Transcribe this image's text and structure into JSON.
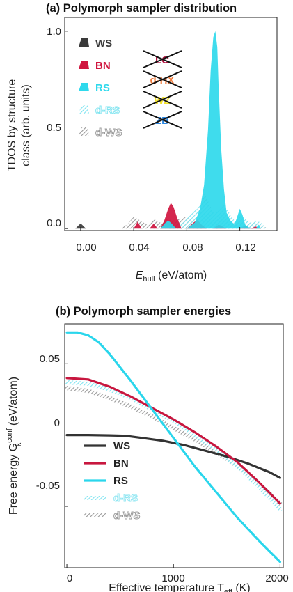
{
  "panel_a": {
    "title": "(a) Polymorph sampler distribution",
    "ylabel_line1": "TDOS by structure",
    "ylabel_line2": "class (arb. units)",
    "xlabel_main": "E",
    "xlabel_sub": "hull",
    "xlabel_unit": " (eV/atom)",
    "xticks": [
      "0.00",
      "0.04",
      "0.08",
      "0.12"
    ],
    "yticks": [
      "0.0",
      "0.5",
      "1.0"
    ],
    "legend": [
      {
        "label": "WS",
        "color": "#3a3a3a",
        "hatched": false
      },
      {
        "label": "BN",
        "color": "#d0153f",
        "hatched": false
      },
      {
        "label": "RS",
        "color": "#2fd9ec",
        "hatched": false
      },
      {
        "label": "d-RS",
        "color": "#7fe4f0",
        "hatched": true
      },
      {
        "label": "d-WS",
        "color": "#9a9a9a",
        "hatched": true
      }
    ],
    "crossed_labels": [
      {
        "label": "LC",
        "color": "#b1113f"
      },
      {
        "label": "d-HX",
        "color": "#f07a3a"
      },
      {
        "label": "WZ",
        "color": "#f2e22c"
      },
      {
        "label": "ZB",
        "color": "#2a86e0"
      }
    ]
  },
  "panel_b": {
    "title": "(b) Polymorph sampler energies",
    "ylabel_main": "Free energy G",
    "ylabel_sub": "k",
    "ylabel_sup": "conf",
    "ylabel_unit": " (eV/atom)",
    "xlabel_main": "Effective temperature T",
    "xlabel_sub": "eff",
    "xlabel_unit": " (K)",
    "xticks": [
      "0",
      "1000",
      "2000"
    ],
    "yticks": [
      "0.05",
      "0",
      "-0.05"
    ],
    "legend": [
      {
        "label": "WS",
        "color": "#333333",
        "hatched": false
      },
      {
        "label": "BN",
        "color": "#c8173f",
        "hatched": false
      },
      {
        "label": "RS",
        "color": "#2ad6ec",
        "hatched": false
      },
      {
        "label": "d-RS",
        "color": "#8fe6f2",
        "hatched": true
      },
      {
        "label": "d-WS",
        "color": "#9a9a9a",
        "hatched": true
      }
    ]
  },
  "chart_data": [
    {
      "type": "area",
      "title": "(a) Polymorph sampler distribution",
      "xlabel": "E_hull (eV/atom)",
      "ylabel": "TDOS by structure class (arb. units)",
      "xlim": [
        -0.012,
        0.148
      ],
      "ylim": [
        -0.01,
        1.07
      ],
      "series": [
        {
          "name": "WS",
          "color": "#3a3a3a",
          "x": [
            -0.004,
            -0.001,
            0.0,
            0.001,
            0.004
          ],
          "y": [
            0.0,
            0.02,
            0.025,
            0.02,
            0.0
          ]
        },
        {
          "name": "BN",
          "color": "#d0153f",
          "x": [
            0.04,
            0.043,
            0.046,
            0.052,
            0.055,
            0.058,
            0.06,
            0.063,
            0.066,
            0.068,
            0.07,
            0.073,
            0.076,
            0.08,
            0.085,
            0.088,
            0.091,
            0.095,
            0.1,
            0.104,
            0.11,
            0.115,
            0.12,
            0.124,
            0.128,
            0.132,
            0.136
          ],
          "y": [
            0.0,
            0.035,
            0.0,
            0.0,
            0.025,
            0.0,
            0.0,
            0.04,
            0.1,
            0.13,
            0.11,
            0.05,
            0.0,
            0.0,
            0.03,
            0.045,
            0.02,
            0.0,
            0.0,
            0.02,
            0.0,
            0.0,
            0.0,
            0.015,
            0.0,
            0.01,
            0.0
          ]
        },
        {
          "name": "RS",
          "color": "#2fd9ec",
          "x": [
            0.06,
            0.064,
            0.066,
            0.068,
            0.072,
            0.08,
            0.086,
            0.09,
            0.093,
            0.096,
            0.098,
            0.1,
            0.1015,
            0.103,
            0.104,
            0.106,
            0.108,
            0.11,
            0.113,
            0.116,
            0.118,
            0.12,
            0.122,
            0.124,
            0.128,
            0.132,
            0.134,
            0.136
          ],
          "y": [
            0.0,
            0.03,
            0.04,
            0.03,
            0.0,
            0.0,
            0.03,
            0.1,
            0.22,
            0.5,
            0.8,
            0.97,
            1.0,
            0.92,
            0.72,
            0.4,
            0.2,
            0.08,
            0.04,
            0.02,
            0.06,
            0.1,
            0.07,
            0.02,
            0.0,
            0.0,
            0.02,
            0.0
          ]
        },
        {
          "name": "d-RS",
          "color": "#7fe4f0",
          "x": [
            0.07,
            0.075,
            0.08,
            0.084,
            0.088,
            0.092,
            0.096,
            0.1,
            0.104,
            0.108,
            0.112,
            0.116,
            0.12,
            0.124,
            0.128,
            0.132,
            0.136,
            0.14
          ],
          "y": [
            0.0,
            0.02,
            0.05,
            0.08,
            0.1,
            0.14,
            0.12,
            0.08,
            0.1,
            0.12,
            0.08,
            0.04,
            0.07,
            0.05,
            0.03,
            0.04,
            0.03,
            0.0
          ]
        },
        {
          "name": "d-WS",
          "color": "#9a9a9a",
          "x": [
            0.03,
            0.035,
            0.04,
            0.045,
            0.05,
            0.055,
            0.06,
            0.065,
            0.07,
            0.075,
            0.08,
            0.085,
            0.09,
            0.093,
            0.096,
            0.1,
            0.104,
            0.108,
            0.112,
            0.116,
            0.12,
            0.124,
            0.13,
            0.136,
            0.141
          ],
          "y": [
            0.0,
            0.02,
            0.06,
            0.04,
            0.02,
            0.05,
            0.03,
            0.05,
            0.04,
            0.05,
            0.06,
            0.04,
            0.1,
            0.18,
            0.14,
            0.08,
            0.06,
            0.08,
            0.05,
            0.03,
            0.04,
            0.02,
            0.03,
            0.02,
            0.0
          ]
        }
      ]
    },
    {
      "type": "line",
      "title": "(b) Polymorph sampler energies",
      "xlabel": "Effective temperature T_eff (K)",
      "ylabel": "Free energy G_k^conf (eV/atom)",
      "xlim": [
        -20,
        2030
      ],
      "ylim": [
        -0.093,
        0.078
      ],
      "series": [
        {
          "name": "WS",
          "color": "#333333",
          "x": [
            0,
            200,
            400,
            550,
            700,
            900,
            1100,
            1300,
            1500,
            1700,
            1900,
            2000
          ],
          "y": [
            0.0,
            0.0,
            -0.0002,
            -0.0005,
            -0.002,
            -0.004,
            -0.007,
            -0.011,
            -0.015,
            -0.02,
            -0.026,
            -0.03
          ]
        },
        {
          "name": "BN",
          "color": "#c8173f",
          "x": [
            0,
            200,
            400,
            600,
            800,
            1000,
            1200,
            1400,
            1600,
            1800,
            2000
          ],
          "y": [
            0.04,
            0.039,
            0.034,
            0.027,
            0.019,
            0.011,
            0.002,
            -0.008,
            -0.019,
            -0.033,
            -0.048
          ]
        },
        {
          "name": "RS",
          "color": "#2ad6ec",
          "x": [
            0,
            100,
            200,
            300,
            400,
            600,
            800,
            1000,
            1200,
            1400,
            1600,
            1800,
            2000
          ],
          "y": [
            0.072,
            0.072,
            0.07,
            0.065,
            0.057,
            0.038,
            0.018,
            -0.002,
            -0.022,
            -0.04,
            -0.058,
            -0.074,
            -0.089
          ]
        },
        {
          "name": "d-RS",
          "color": "#8fe6f2",
          "x": [
            0,
            200,
            400,
            600,
            800,
            1000,
            1200,
            1400,
            1600,
            1800,
            2000
          ],
          "y": [
            0.037,
            0.036,
            0.032,
            0.026,
            0.018,
            0.01,
            0.0,
            -0.01,
            -0.022,
            -0.036,
            -0.052
          ]
        },
        {
          "name": "d-WS",
          "color": "#9a9a9a",
          "x": [
            0,
            200,
            400,
            600,
            800,
            1000,
            1200,
            1400,
            1600,
            1800,
            2000
          ],
          "y": [
            0.033,
            0.031,
            0.026,
            0.02,
            0.013,
            0.005,
            -0.003,
            -0.012,
            -0.022,
            -0.034,
            -0.048
          ]
        }
      ]
    }
  ]
}
